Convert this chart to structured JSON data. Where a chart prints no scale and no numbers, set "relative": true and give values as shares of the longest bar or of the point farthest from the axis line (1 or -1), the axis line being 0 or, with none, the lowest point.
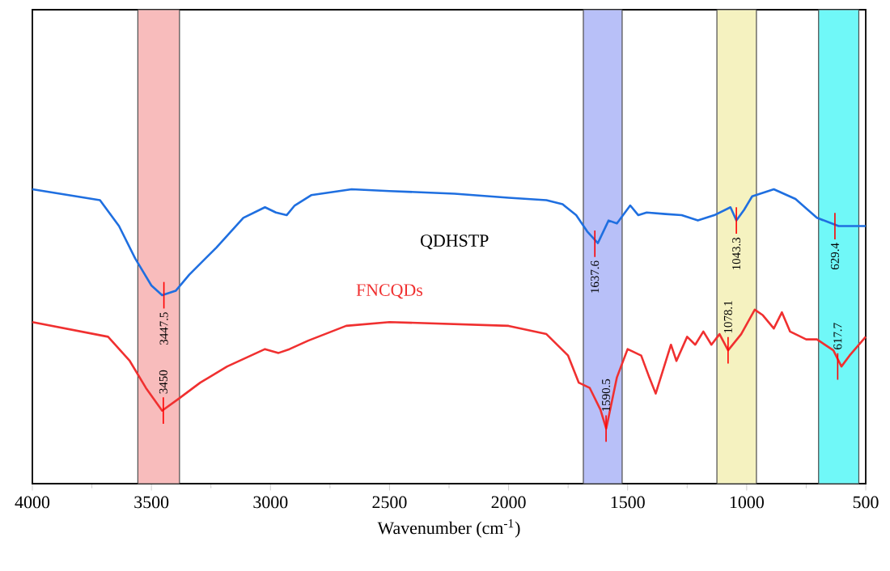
{
  "chart_data": {
    "type": "line",
    "xlabel": "Wavenumber (cm$^{-1}$)",
    "relative": true,
    "xlim": [
      4000,
      500
    ],
    "xticks": [
      4000,
      3500,
      3000,
      2500,
      2000,
      1500,
      1000,
      500
    ],
    "legend": false,
    "grid": false,
    "marker": "none",
    "line_style": "solid",
    "series": [
      {
        "name": "QDHSTP",
        "color": "#1f6fe0",
        "x": [
          4000,
          3716,
          3636,
          3568,
          3500,
          3455,
          3398,
          3341,
          3227,
          3114,
          3023,
          2977,
          2932,
          2898,
          2829,
          2659,
          2500,
          2227,
          2000,
          1841,
          1773,
          1716,
          1670,
          1625,
          1580,
          1545,
          1489,
          1455,
          1420,
          1341,
          1273,
          1205,
          1136,
          1068,
          1043,
          1011,
          977,
          886,
          795,
          705,
          614,
          500
        ],
        "values": [
          1.0,
          0.963,
          0.875,
          0.765,
          0.673,
          0.64,
          0.655,
          0.71,
          0.802,
          0.903,
          0.939,
          0.921,
          0.912,
          0.945,
          0.98,
          1.0,
          0.994,
          0.985,
          0.971,
          0.963,
          0.949,
          0.912,
          0.857,
          0.817,
          0.894,
          0.884,
          0.945,
          0.912,
          0.921,
          0.916,
          0.912,
          0.894,
          0.912,
          0.939,
          0.894,
          0.93,
          0.976,
          1.0,
          0.967,
          0.903,
          0.875,
          0.875
        ]
      },
      {
        "name": "FNCQDs",
        "color": "#f03030",
        "x": [
          4000,
          3682,
          3591,
          3523,
          3455,
          3386,
          3295,
          3182,
          3023,
          2966,
          2920,
          2841,
          2682,
          2500,
          2000,
          1841,
          1750,
          1705,
          1659,
          1614,
          1590,
          1545,
          1500,
          1443,
          1409,
          1382,
          1318,
          1295,
          1250,
          1216,
          1182,
          1148,
          1114,
          1078,
          1023,
          966,
          932,
          886,
          852,
          818,
          750,
          705,
          636,
          602,
          568,
          500
        ],
        "values": [
          0.549,
          0.499,
          0.417,
          0.325,
          0.248,
          0.288,
          0.343,
          0.398,
          0.457,
          0.444,
          0.457,
          0.486,
          0.536,
          0.549,
          0.536,
          0.508,
          0.435,
          0.343,
          0.325,
          0.251,
          0.187,
          0.361,
          0.457,
          0.435,
          0.361,
          0.306,
          0.472,
          0.417,
          0.499,
          0.472,
          0.517,
          0.472,
          0.508,
          0.453,
          0.508,
          0.591,
          0.572,
          0.527,
          0.582,
          0.517,
          0.49,
          0.49,
          0.453,
          0.398,
          0.435,
          0.499
        ]
      }
    ],
    "bands": [
      {
        "axis": "x",
        "from": 3557,
        "to": 3382,
        "color": "#f8bcbc"
      },
      {
        "axis": "x",
        "from": 1686,
        "to": 1523,
        "color": "#b8c0f8"
      },
      {
        "axis": "x",
        "from": 1125,
        "to": 959,
        "color": "#f5f2c0"
      },
      {
        "axis": "x",
        "from": 698,
        "to": 529,
        "color": "#70f8f8"
      }
    ],
    "annotations": [
      {
        "text": "3447.5",
        "x": 3447.5,
        "y": 0.64
      },
      {
        "text": "1637.6",
        "x": 1637.6,
        "y": 0.815
      },
      {
        "text": "1043.3",
        "x": 1043.3,
        "y": 0.894
      },
      {
        "text": "629.4",
        "x": 629.4,
        "y": 0.875
      },
      {
        "text": "3450",
        "x": 3450,
        "y": 0.248
      },
      {
        "text": "1590.5",
        "x": 1590.5,
        "y": 0.187
      },
      {
        "text": "1078.1",
        "x": 1078.1,
        "y": 0.453
      },
      {
        "text": "617.7",
        "x": 617.7,
        "y": 0.398
      }
    ]
  }
}
